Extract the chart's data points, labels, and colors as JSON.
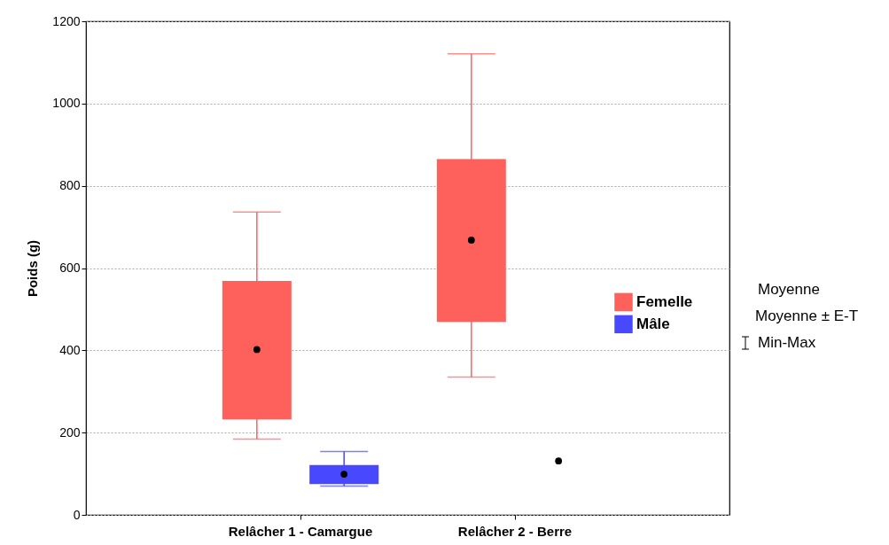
{
  "chart_data": {
    "type": "box",
    "ylabel": "Poids (g)",
    "categories": [
      "Relâcher 1 - Camargue",
      "Relâcher 2 - Berre"
    ],
    "series": [
      {
        "name": "Femelle",
        "color": "#fe605c",
        "boxes": [
          {
            "low": 184,
            "q1": 232,
            "q3": 569,
            "high": 736,
            "mean": 402
          },
          {
            "low": 335,
            "q1": 469,
            "q3": 865,
            "high": 1121,
            "mean": 668
          }
        ]
      },
      {
        "name": "Mâle",
        "color": "#4848fe",
        "boxes": [
          {
            "low": 70,
            "q1": 75,
            "q3": 121,
            "high": 154,
            "mean": 99
          },
          null
        ]
      },
      {
        "type": "scatter",
        "color": "#000000",
        "x": [
          "Relâcher 2 - Berre"
        ],
        "values": [
          131
        ]
      }
    ],
    "ylim": [
      0,
      1200
    ],
    "yticks": [
      0,
      200,
      400,
      600,
      800,
      1000,
      1200
    ],
    "grid": "y",
    "legend": "right",
    "annotations": [
      "Moyenne",
      "Moyenne ± E-T",
      "Min-Max"
    ]
  }
}
